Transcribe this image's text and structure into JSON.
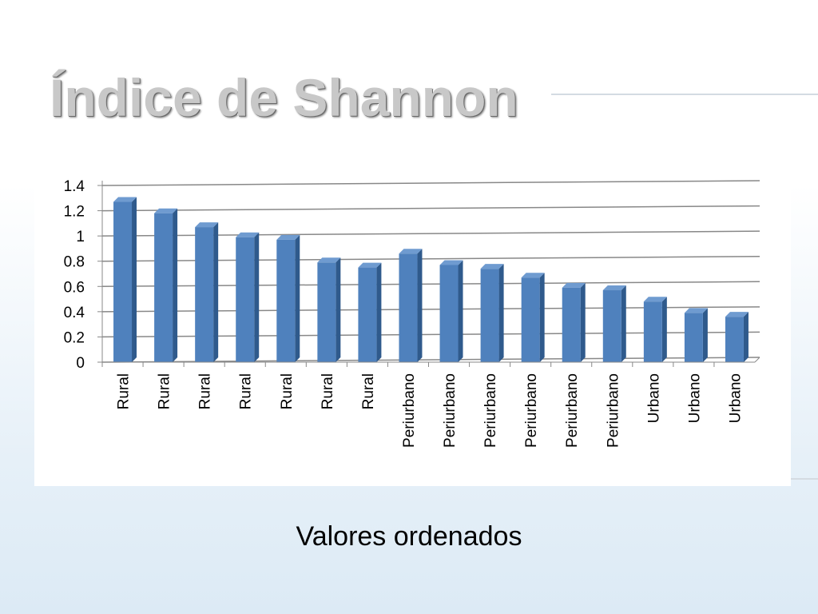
{
  "chart_data": {
    "type": "bar",
    "title": "Índice de Shannon",
    "subtitle": "Valores ordenados",
    "categories": [
      "Rural",
      "Rural",
      "Rural",
      "Rural",
      "Rural",
      "Rural",
      "Rural",
      "Periurbano",
      "Periurbano",
      "Periurbano",
      "Periurbano",
      "Periurbano",
      "Periurbano",
      "Urbano",
      "Urbano",
      "Urbano"
    ],
    "values": [
      1.27,
      1.18,
      1.07,
      0.99,
      0.97,
      0.79,
      0.75,
      0.86,
      0.77,
      0.74,
      0.67,
      0.59,
      0.57,
      0.48,
      0.39,
      0.36
    ],
    "color": "#4f81bd",
    "ylim": [
      0,
      1.4
    ],
    "yticks": [
      0,
      0.2,
      0.4,
      0.6,
      0.8,
      1,
      1.2,
      1.4
    ],
    "grid": true
  }
}
